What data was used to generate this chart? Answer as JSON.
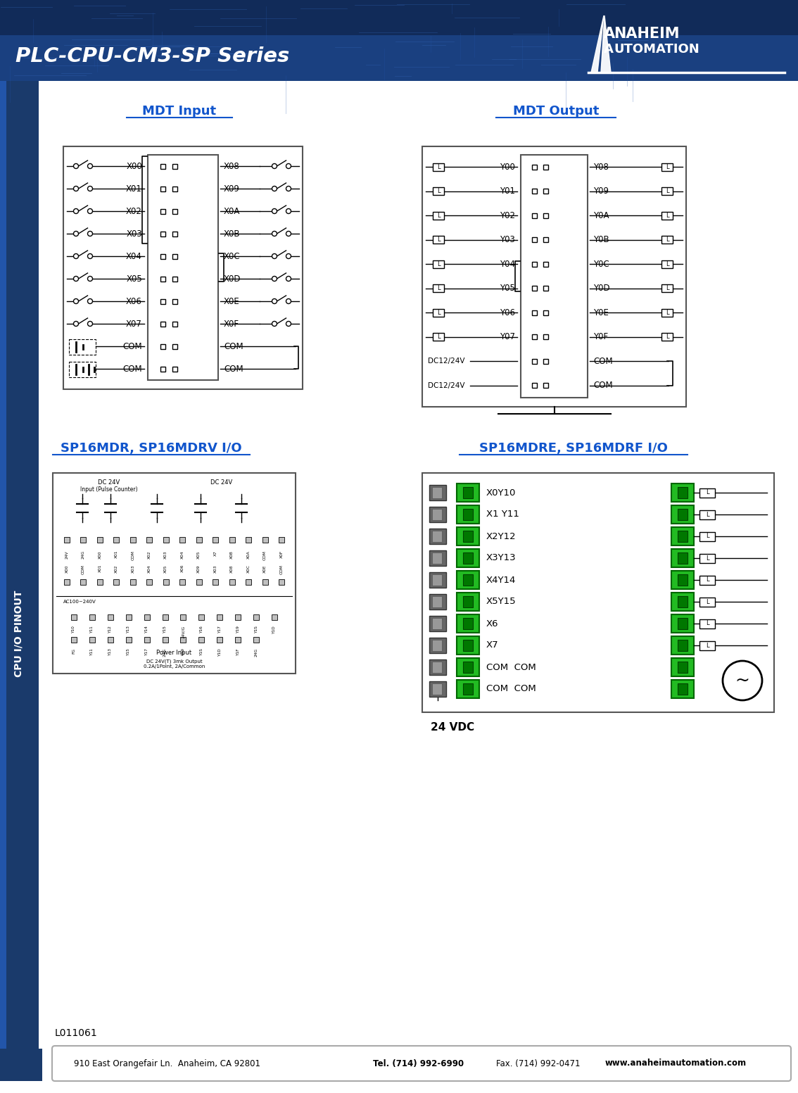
{
  "page_title": "PLC-CPU-CM3-SP Series",
  "doc_number": "L011061",
  "header_bg_top": "#0d2244",
  "header_bg_mid": "#1a4488",
  "sidebar_color": "#1a3a6b",
  "sidebar_accent": "#2255bb",
  "mdt_input_title": "MDT Input",
  "mdt_output_title": "MDT Output",
  "sp16mdr_title": "SP16MDR, SP16MDRV I/O",
  "sp16mdre_title": "SP16MDRE, SP16MDRF I/O",
  "sidebar_label": "CPU I/O PINOUT",
  "input_labels_left": [
    "X00",
    "X01",
    "X02",
    "X03",
    "X04",
    "X05",
    "X06",
    "X07",
    "COM",
    "COM"
  ],
  "input_labels_right": [
    "X08",
    "X09",
    "X0A",
    "X0B",
    "X0C",
    "X0D",
    "X0E",
    "X0F",
    "COM",
    "COM"
  ],
  "output_labels_left": [
    "Y00",
    "Y01",
    "Y02",
    "Y03",
    "Y04",
    "Y05",
    "Y06",
    "Y07",
    "DC12/24V",
    "DC12/24V"
  ],
  "output_labels_right": [
    "Y08",
    "Y09",
    "Y0A",
    "Y0B",
    "Y0C",
    "Y0D",
    "Y0E",
    "Y0F",
    "COM",
    "COM"
  ],
  "sp16mdre_labels": [
    "X0Y10",
    "X1 Y11",
    "X2Y12",
    "X3Y13",
    "X4Y14",
    "X5Y15",
    "X6",
    "X7",
    "COM  COM",
    "COM  COM"
  ],
  "link_color": "#1155cc",
  "text_color": "#000000",
  "green_color": "#22bb22",
  "green_dark": "#006600",
  "bg_white": "#ffffff",
  "box_edge": "#555555",
  "footer_addr": "910 East Orangefair Ln.  Anaheim, CA 92801    ",
  "footer_tel": "Tel. (714) 992-6990",
  "footer_fax": "    Fax. (714) 992-0471    ",
  "footer_web": "www.anaheimautomation.com"
}
